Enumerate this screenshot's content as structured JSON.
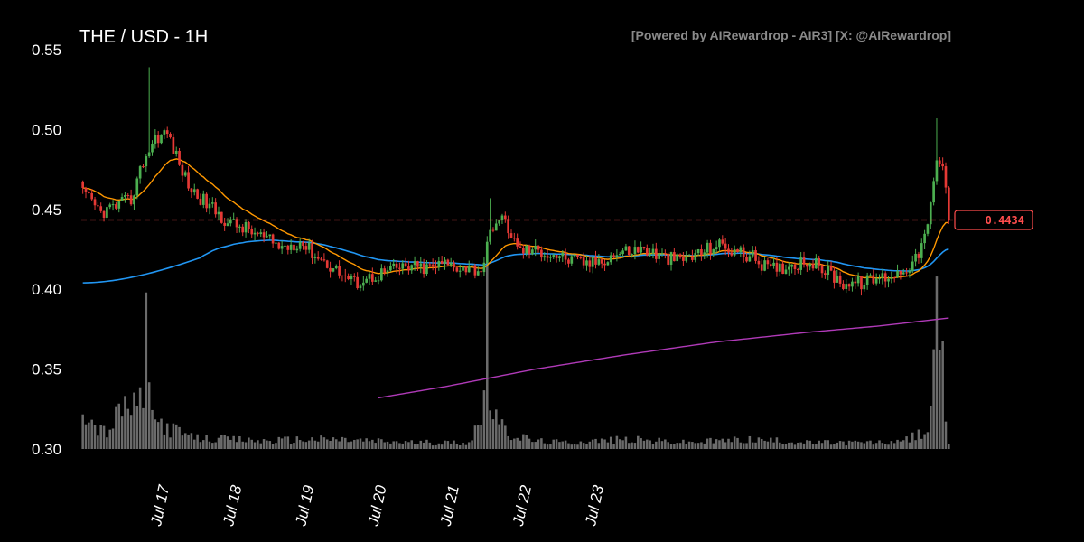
{
  "header": {
    "title": "THE / USD - 1H",
    "credit": "[Powered by AIRewardrop - AIR3] [X: @AIRewardrop]"
  },
  "colors": {
    "background": "#000000",
    "up": "#4caf50",
    "down": "#e53935",
    "ema_short": "#ff9800",
    "ema_mid": "#2196f3",
    "ema_long": "#b03ab8",
    "volume": "#6b6b6b",
    "current_price": "#ff4d4d"
  },
  "chart_data": {
    "type": "candlestick",
    "title": "THE / USD - 1H",
    "ylim": [
      0.3,
      0.55
    ],
    "y_ticks": [
      "0.30",
      "0.35",
      "0.40",
      "0.45",
      "0.50",
      "0.55"
    ],
    "x_ticks": [
      "Jul 17",
      "Jul 18",
      "Jul 19",
      "Jul 20",
      "Jul 21",
      "Jul 22",
      "Jul 23"
    ],
    "grid": false,
    "current_price": 0.4434,
    "current_price_label": "0.4434",
    "price_anchors": [
      [
        0,
        0.46
      ],
      [
        6,
        0.448
      ],
      [
        12,
        0.453
      ],
      [
        16,
        0.456
      ],
      [
        20,
        0.48
      ],
      [
        24,
        0.495
      ],
      [
        28,
        0.498
      ],
      [
        32,
        0.478
      ],
      [
        36,
        0.462
      ],
      [
        42,
        0.452
      ],
      [
        48,
        0.442
      ],
      [
        54,
        0.438
      ],
      [
        60,
        0.432
      ],
      [
        66,
        0.426
      ],
      [
        72,
        0.43
      ],
      [
        78,
        0.42
      ],
      [
        84,
        0.412
      ],
      [
        90,
        0.404
      ],
      [
        96,
        0.408
      ],
      [
        102,
        0.412
      ],
      [
        108,
        0.414
      ],
      [
        114,
        0.413
      ],
      [
        120,
        0.416
      ],
      [
        126,
        0.414
      ],
      [
        132,
        0.412
      ],
      [
        136,
        0.441
      ],
      [
        140,
        0.443
      ],
      [
        144,
        0.425
      ],
      [
        150,
        0.424
      ],
      [
        156,
        0.422
      ],
      [
        162,
        0.418
      ],
      [
        168,
        0.416
      ],
      [
        174,
        0.42
      ],
      [
        180,
        0.424
      ],
      [
        186,
        0.425
      ],
      [
        192,
        0.42
      ],
      [
        198,
        0.418
      ],
      [
        204,
        0.422
      ],
      [
        210,
        0.428
      ],
      [
        216,
        0.424
      ],
      [
        222,
        0.42
      ],
      [
        228,
        0.412
      ],
      [
        234,
        0.415
      ],
      [
        240,
        0.418
      ],
      [
        246,
        0.412
      ],
      [
        252,
        0.404
      ],
      [
        258,
        0.404
      ],
      [
        264,
        0.407
      ],
      [
        270,
        0.41
      ],
      [
        276,
        0.418
      ],
      [
        280,
        0.438
      ],
      [
        283,
        0.48
      ],
      [
        285,
        0.478
      ],
      [
        287,
        0.443
      ]
    ],
    "spikes": {
      "22": 0.539,
      "135": 0.457,
      "283": 0.507
    },
    "volume_anchors": [
      [
        0,
        0.03
      ],
      [
        4,
        0.014
      ],
      [
        8,
        0.01
      ],
      [
        14,
        0.028
      ],
      [
        18,
        0.024
      ],
      [
        20,
        0.04
      ],
      [
        24,
        0.018
      ],
      [
        30,
        0.012
      ],
      [
        36,
        0.007
      ],
      [
        48,
        0.006
      ],
      [
        60,
        0.005
      ],
      [
        72,
        0.006
      ],
      [
        84,
        0.006
      ],
      [
        96,
        0.005
      ],
      [
        110,
        0.004
      ],
      [
        128,
        0.004
      ],
      [
        132,
        0.02
      ],
      [
        134,
        0.044
      ],
      [
        136,
        0.024
      ],
      [
        140,
        0.01
      ],
      [
        150,
        0.005
      ],
      [
        160,
        0.004
      ],
      [
        170,
        0.005
      ],
      [
        180,
        0.006
      ],
      [
        190,
        0.005
      ],
      [
        200,
        0.004
      ],
      [
        210,
        0.005
      ],
      [
        220,
        0.006
      ],
      [
        230,
        0.005
      ],
      [
        240,
        0.004
      ],
      [
        250,
        0.004
      ],
      [
        260,
        0.004
      ],
      [
        270,
        0.004
      ],
      [
        276,
        0.008
      ],
      [
        280,
        0.012
      ],
      [
        282,
        0.05
      ],
      [
        284,
        0.086
      ],
      [
        286,
        0.012
      ],
      [
        287,
        0.002
      ]
    ],
    "volume_spikes": {
      "21": 0.098,
      "134": 0.122,
      "283": 0.108
    },
    "ema_long_anchors": [
      [
        98,
        0.332
      ],
      [
        120,
        0.339
      ],
      [
        150,
        0.35
      ],
      [
        180,
        0.359
      ],
      [
        210,
        0.367
      ],
      [
        240,
        0.373
      ],
      [
        264,
        0.377
      ],
      [
        287,
        0.382
      ]
    ]
  }
}
